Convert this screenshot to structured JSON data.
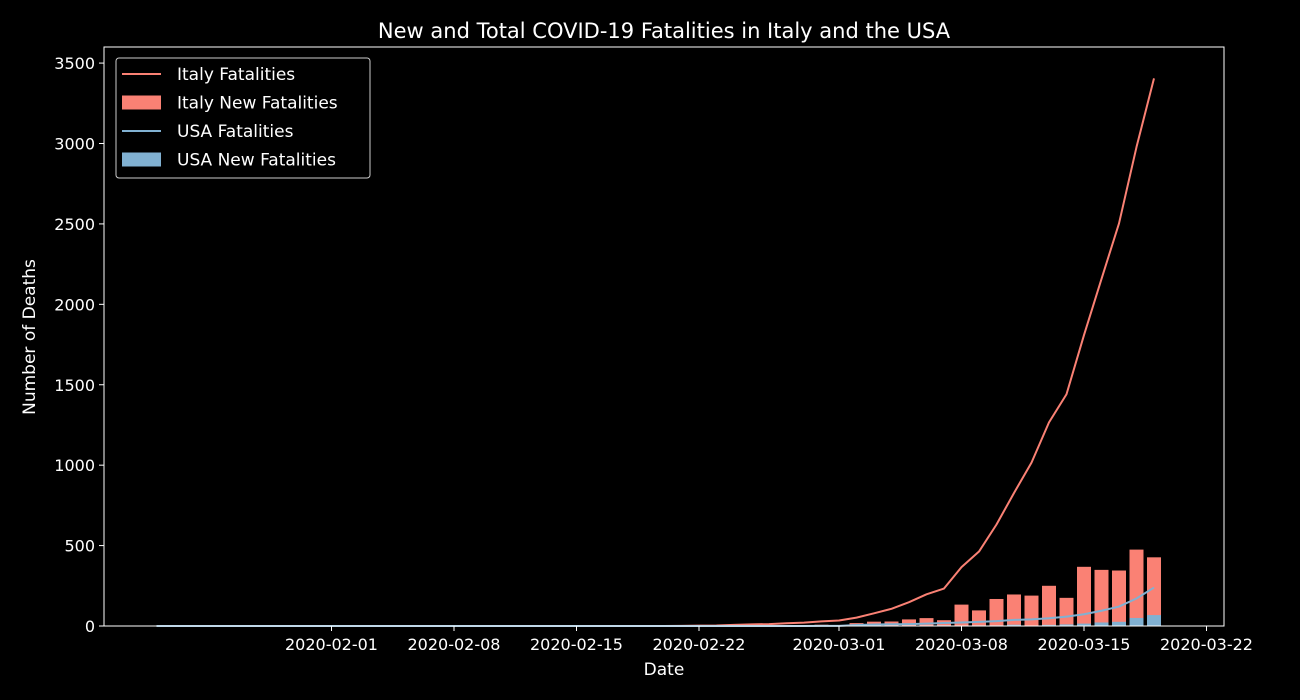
{
  "colors": {
    "background": "#000000",
    "axes": "#ffffff",
    "italy": "#fa8174",
    "usa": "#81b1d2"
  },
  "chart_data": {
    "type": "bar",
    "title": "New and Total COVID-19 Fatalities in Italy and the USA",
    "xlabel": "Date",
    "ylabel": "Number of Deaths",
    "xlim": [
      "2020-01-19",
      "2020-03-23"
    ],
    "ylim": [
      0,
      3600
    ],
    "grid": false,
    "legend_position": "top-left",
    "x_ticks": [
      "2020-02-01",
      "2020-02-08",
      "2020-02-15",
      "2020-02-22",
      "2020-03-01",
      "2020-03-08",
      "2020-03-15",
      "2020-03-22"
    ],
    "y_ticks": [
      0,
      500,
      1000,
      1500,
      2000,
      2500,
      3000,
      3500
    ],
    "dates": [
      "2020-01-22",
      "2020-01-23",
      "2020-01-24",
      "2020-01-25",
      "2020-01-26",
      "2020-01-27",
      "2020-01-28",
      "2020-01-29",
      "2020-01-30",
      "2020-01-31",
      "2020-02-01",
      "2020-02-02",
      "2020-02-03",
      "2020-02-04",
      "2020-02-05",
      "2020-02-06",
      "2020-02-07",
      "2020-02-08",
      "2020-02-09",
      "2020-02-10",
      "2020-02-11",
      "2020-02-12",
      "2020-02-13",
      "2020-02-14",
      "2020-02-15",
      "2020-02-16",
      "2020-02-17",
      "2020-02-18",
      "2020-02-19",
      "2020-02-20",
      "2020-02-21",
      "2020-02-22",
      "2020-02-23",
      "2020-02-24",
      "2020-02-25",
      "2020-02-26",
      "2020-02-27",
      "2020-02-28",
      "2020-02-29",
      "2020-03-01",
      "2020-03-02",
      "2020-03-03",
      "2020-03-04",
      "2020-03-05",
      "2020-03-06",
      "2020-03-07",
      "2020-03-08",
      "2020-03-09",
      "2020-03-10",
      "2020-03-11",
      "2020-03-12",
      "2020-03-13",
      "2020-03-14",
      "2020-03-15",
      "2020-03-16",
      "2020-03-17",
      "2020-03-18",
      "2020-03-19"
    ],
    "series": [
      {
        "name": "Italy Fatalities",
        "kind": "line",
        "color": "#fa8174",
        "values": [
          0,
          0,
          0,
          0,
          0,
          0,
          0,
          0,
          0,
          0,
          0,
          0,
          0,
          0,
          0,
          0,
          0,
          0,
          0,
          0,
          0,
          0,
          0,
          0,
          0,
          0,
          0,
          0,
          0,
          0,
          1,
          2,
          3,
          7,
          10,
          12,
          17,
          21,
          29,
          34,
          52,
          79,
          107,
          148,
          197,
          233,
          366,
          463,
          631,
          827,
          1016,
          1266,
          1441,
          1809,
          2158,
          2503,
          2978,
          3405
        ]
      },
      {
        "name": "Italy New Fatalities",
        "kind": "bar",
        "color": "#fa8174",
        "values": [
          0,
          0,
          0,
          0,
          0,
          0,
          0,
          0,
          0,
          0,
          0,
          0,
          0,
          0,
          0,
          0,
          0,
          0,
          0,
          0,
          0,
          0,
          0,
          0,
          0,
          0,
          0,
          0,
          0,
          0,
          1,
          1,
          1,
          4,
          3,
          2,
          5,
          4,
          8,
          5,
          18,
          27,
          28,
          41,
          49,
          36,
          133,
          97,
          168,
          196,
          189,
          250,
          175,
          368,
          349,
          345,
          475,
          427
        ]
      },
      {
        "name": "USA Fatalities",
        "kind": "line",
        "color": "#81b1d2",
        "values": [
          0,
          0,
          0,
          0,
          0,
          0,
          0,
          0,
          0,
          0,
          0,
          0,
          0,
          0,
          0,
          0,
          0,
          0,
          0,
          0,
          0,
          0,
          0,
          0,
          0,
          0,
          0,
          0,
          0,
          0,
          0,
          0,
          0,
          0,
          0,
          0,
          0,
          0,
          1,
          1,
          6,
          9,
          11,
          12,
          15,
          19,
          22,
          26,
          30,
          38,
          41,
          48,
          58,
          73,
          95,
          121,
          171,
          239
        ]
      },
      {
        "name": "USA New Fatalities",
        "kind": "bar",
        "color": "#81b1d2",
        "values": [
          0,
          0,
          0,
          0,
          0,
          0,
          0,
          0,
          0,
          0,
          0,
          0,
          0,
          0,
          0,
          0,
          0,
          0,
          0,
          0,
          0,
          0,
          0,
          0,
          0,
          0,
          0,
          0,
          0,
          0,
          0,
          0,
          0,
          0,
          0,
          0,
          0,
          0,
          1,
          0,
          5,
          3,
          2,
          1,
          3,
          4,
          3,
          4,
          4,
          8,
          3,
          7,
          10,
          15,
          22,
          26,
          50,
          68
        ]
      }
    ]
  }
}
